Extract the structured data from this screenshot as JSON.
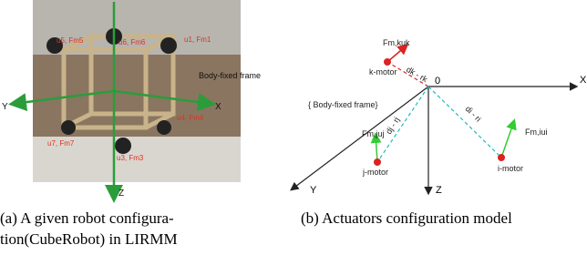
{
  "photo": {
    "labels": {
      "u5": "u5, Fm5",
      "u6": "u6, Fm6",
      "u1": "u1, Fm1",
      "u4": "u4, Fm4",
      "u7": "u7, Fm7",
      "u3": "u3, Fm3"
    },
    "frame_label": "Body-fixed frame",
    "axis_x": "X",
    "axis_y": "Y",
    "axis_z": "Z"
  },
  "caption_a": [
    "(a) A given robot configura-",
    "tion(CubeRobot) in LIRMM"
  ],
  "diagram": {
    "origin": "0",
    "axis_x": "X",
    "axis_y": "Y",
    "axis_z": "Z",
    "frame_label": "{ Body-fixed frame}",
    "k_force": "Fm,kuk",
    "k_motor": "k-motor",
    "k_dist": "dk - rk",
    "j_force": "Fm,juj",
    "j_motor": "j-motor",
    "j_dist": "dj - rj",
    "i_force": "Fm,iui",
    "i_motor": "i-motor",
    "i_dist": "di - ri"
  },
  "caption_b": "(b) Actuators configuration model"
}
